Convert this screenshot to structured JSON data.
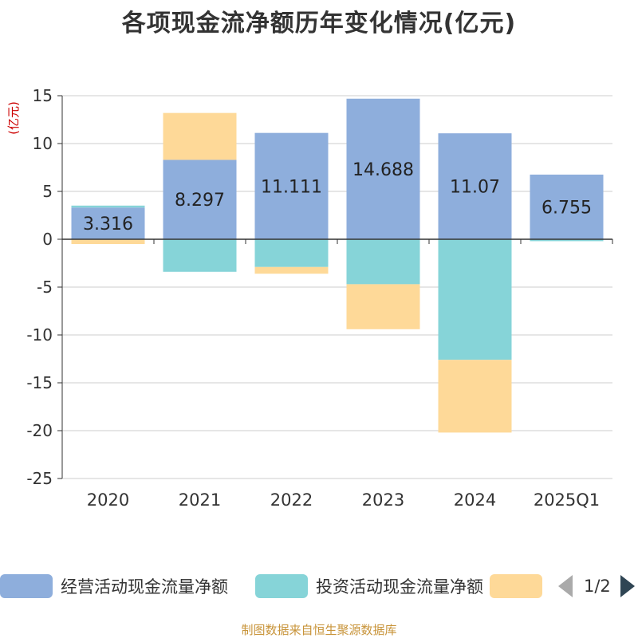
{
  "chart_data": {
    "type": "bar",
    "title": "各项现金流净额历年变化情况(亿元)",
    "yunit": "(亿元)",
    "categories": [
      "2020",
      "2021",
      "2022",
      "2023",
      "2024",
      "2025Q1"
    ],
    "ylim": [
      -25,
      15
    ],
    "yticks": [
      15,
      10,
      5,
      0,
      -5,
      -10,
      -15,
      -20,
      -25
    ],
    "grid": true,
    "stacked": true,
    "legend_position": "bottom",
    "series": [
      {
        "name": "经营活动现金流量净额",
        "color": "#8eaedc",
        "values": [
          3.316,
          8.297,
          11.111,
          14.688,
          11.07,
          6.755
        ],
        "labels": [
          "3.316",
          "8.297",
          "11.111",
          "14.688",
          "11.07",
          "6.755"
        ]
      },
      {
        "name": "投资活动现金流量净额",
        "color": "#86d4d8",
        "values": [
          0.2,
          -3.4,
          -2.9,
          -4.7,
          -12.6,
          -0.2
        ]
      },
      {
        "name": "",
        "color": "#fed998",
        "values": [
          -0.5,
          4.9,
          -0.7,
          -4.7,
          -7.6,
          0
        ]
      }
    ]
  },
  "legend": {
    "items": [
      {
        "label": "经营活动现金流量净额",
        "color": "#8eaedc"
      },
      {
        "label": "投资活动现金流量净额",
        "color": "#86d4d8"
      },
      {
        "label": "",
        "color": "#fed998"
      }
    ],
    "pager_text": "1/2"
  },
  "footer": {
    "source": "制图数据来自恒生聚源数据库"
  },
  "colors": {
    "unit_label": "#cc0000",
    "axis": "#333333",
    "grid": "#cccccc"
  }
}
